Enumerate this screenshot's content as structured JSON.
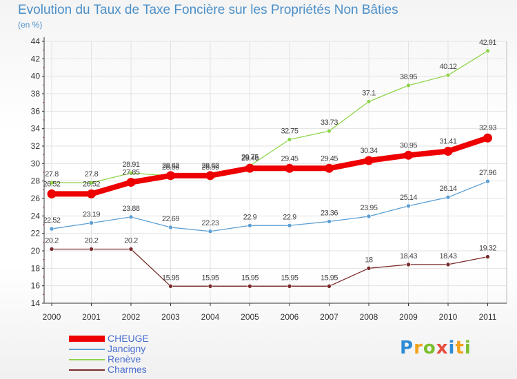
{
  "header": {
    "title": "Evolution du Taux de Taxe Foncière sur les Propriétés Non Bâties",
    "unit": "(en %)"
  },
  "logo": {
    "text": "Proxiti",
    "letters": [
      "P",
      "r",
      "o",
      "x",
      "i",
      "t",
      "i"
    ]
  },
  "chart_data": {
    "type": "line",
    "title": "Evolution du Taux de Taxe Foncière sur les Propriétés Non Bâties",
    "ylabel": "(en %)",
    "xlabel": "",
    "categories": [
      "2000",
      "2001",
      "2002",
      "2003",
      "2004",
      "2005",
      "2006",
      "2007",
      "2008",
      "2009",
      "2010",
      "2011"
    ],
    "ylim": [
      14,
      44
    ],
    "yticks": [
      14,
      16,
      18,
      20,
      22,
      24,
      26,
      28,
      30,
      32,
      34,
      36,
      38,
      40,
      42,
      44
    ],
    "grid": true,
    "legend_position": "bottom-left",
    "series": [
      {
        "name": "CHEUGE",
        "color": "#ee0000",
        "emphasis": true,
        "values": [
          26.52,
          26.52,
          27.85,
          28.62,
          28.62,
          29.46,
          29.45,
          29.45,
          30.34,
          30.95,
          31.41,
          32.93
        ],
        "labels": [
          "26.52",
          "26.52",
          "27.85",
          "28.62",
          "28.62",
          "29.46",
          "29.45",
          "29.45",
          "30.34",
          "30.95",
          "31.41",
          "32.93"
        ]
      },
      {
        "name": "Jancigny",
        "color": "#5b9fd4",
        "values": [
          22.52,
          23.19,
          23.88,
          22.69,
          22.23,
          22.9,
          22.9,
          23.36,
          23.95,
          25.14,
          26.14,
          27.96
        ],
        "labels": [
          "22.52",
          "23.19",
          "23.88",
          "22.69",
          "22.23",
          "22.9",
          "22.9",
          "23.36",
          "23.95",
          "25.14",
          "26.14",
          "27.96"
        ]
      },
      {
        "name": "Renève",
        "color": "#8fd34a",
        "values": [
          27.8,
          27.8,
          28.91,
          28.59,
          28.59,
          29.75,
          32.75,
          33.73,
          37.1,
          38.95,
          40.12,
          42.91
        ],
        "labels": [
          "27.8",
          "27.8",
          "28.91",
          "28.59",
          "28.59",
          "29.75",
          "32.75",
          "33.73",
          "37.1",
          "38.95",
          "40.12",
          "42.91"
        ]
      },
      {
        "name": "Charmes",
        "color": "#7a2a2a",
        "values": [
          20.2,
          20.2,
          20.2,
          15.95,
          15.95,
          15.95,
          15.95,
          15.95,
          18,
          18.43,
          18.43,
          19.32
        ],
        "labels": [
          "20.2",
          "20.2",
          "20.2",
          "15.95",
          "15.95",
          "15.95",
          "15.95",
          "15.95",
          "18",
          "18.43",
          "18.43",
          "19.32"
        ]
      }
    ]
  }
}
